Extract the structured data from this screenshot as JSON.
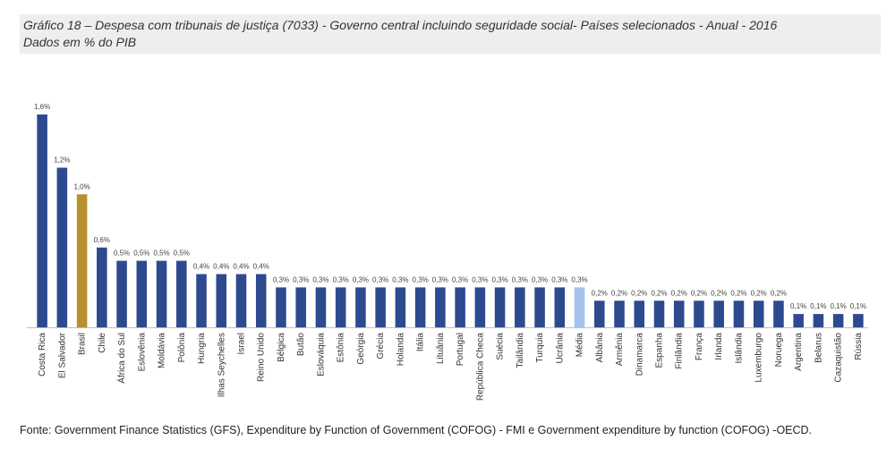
{
  "header": {
    "title": "Gráfico 18 – Despesa com tribunais de justiça (7033) - Governo central incluindo seguridade social- Países selecionados - Anual - 2016",
    "subtitle": "Dados em % do PIB"
  },
  "footer": {
    "source": "Fonte: Government Finance Statistics (GFS), Expenditure by Function of Government (COFOG) - FMI e Government expenditure by function (COFOG) -OECD."
  },
  "colors": {
    "default": "#2e4a8f",
    "highlight": "#b89030",
    "average": "#a4c2ec",
    "axis": "#bfbfbf"
  },
  "chart_data": {
    "type": "bar",
    "ylabel": "",
    "xlabel": "",
    "ylim": [
      0,
      1.6
    ],
    "grid": false,
    "legend": "none",
    "categories": [
      "Costa Rica",
      "El Salvador",
      "Brasil",
      "Chile",
      "África do Sul",
      "Eslovênia",
      "Moldávia",
      "Polônia",
      "Hungria",
      "Ilhas Seychelles",
      "Israel",
      "Reino Unido",
      "Bélgica",
      "Butão",
      "Eslováquia",
      "Estônia",
      "Geórgia",
      "Grécia",
      "Holanda",
      "Itália",
      "Lituânia",
      "Portugal",
      "República Checa",
      "Suécia",
      "Tailândia",
      "Turquia",
      "Ucrânia",
      "Média",
      "Albânia",
      "Armênia",
      "Dinamarca",
      "Espanha",
      "Finlândia",
      "França",
      "Irlanda",
      "Islândia",
      "Luxemburgo",
      "Noruega",
      "Argentina",
      "Belarus",
      "Cazaquistão",
      "Rússia"
    ],
    "values": [
      1.6,
      1.2,
      1.0,
      0.6,
      0.5,
      0.5,
      0.5,
      0.5,
      0.4,
      0.4,
      0.4,
      0.4,
      0.3,
      0.3,
      0.3,
      0.3,
      0.3,
      0.3,
      0.3,
      0.3,
      0.3,
      0.3,
      0.3,
      0.3,
      0.3,
      0.3,
      0.3,
      0.3,
      0.2,
      0.2,
      0.2,
      0.2,
      0.2,
      0.2,
      0.2,
      0.2,
      0.2,
      0.2,
      0.1,
      0.1,
      0.1,
      0.1
    ],
    "data_labels": [
      "1,6%",
      "1,2%",
      "1,0%",
      "0,6%",
      "0,5%",
      "0,5%",
      "0,5%",
      "0,5%",
      "0,4%",
      "0,4%",
      "0,4%",
      "0,4%",
      "0,3%",
      "0,3%",
      "0,3%",
      "0,3%",
      "0,3%",
      "0,3%",
      "0,3%",
      "0,3%",
      "0,3%",
      "0,3%",
      "0,3%",
      "0,3%",
      "0,3%",
      "0,3%",
      "0,3%",
      "0,3%",
      "0,2%",
      "0,2%",
      "0,2%",
      "0,2%",
      "0,2%",
      "0,2%",
      "0,2%",
      "0,2%",
      "0,2%",
      "0,2%",
      "0,1%",
      "0,1%",
      "0,1%",
      "0,1%"
    ],
    "highlight_category": "Brasil",
    "average_category": "Média"
  }
}
